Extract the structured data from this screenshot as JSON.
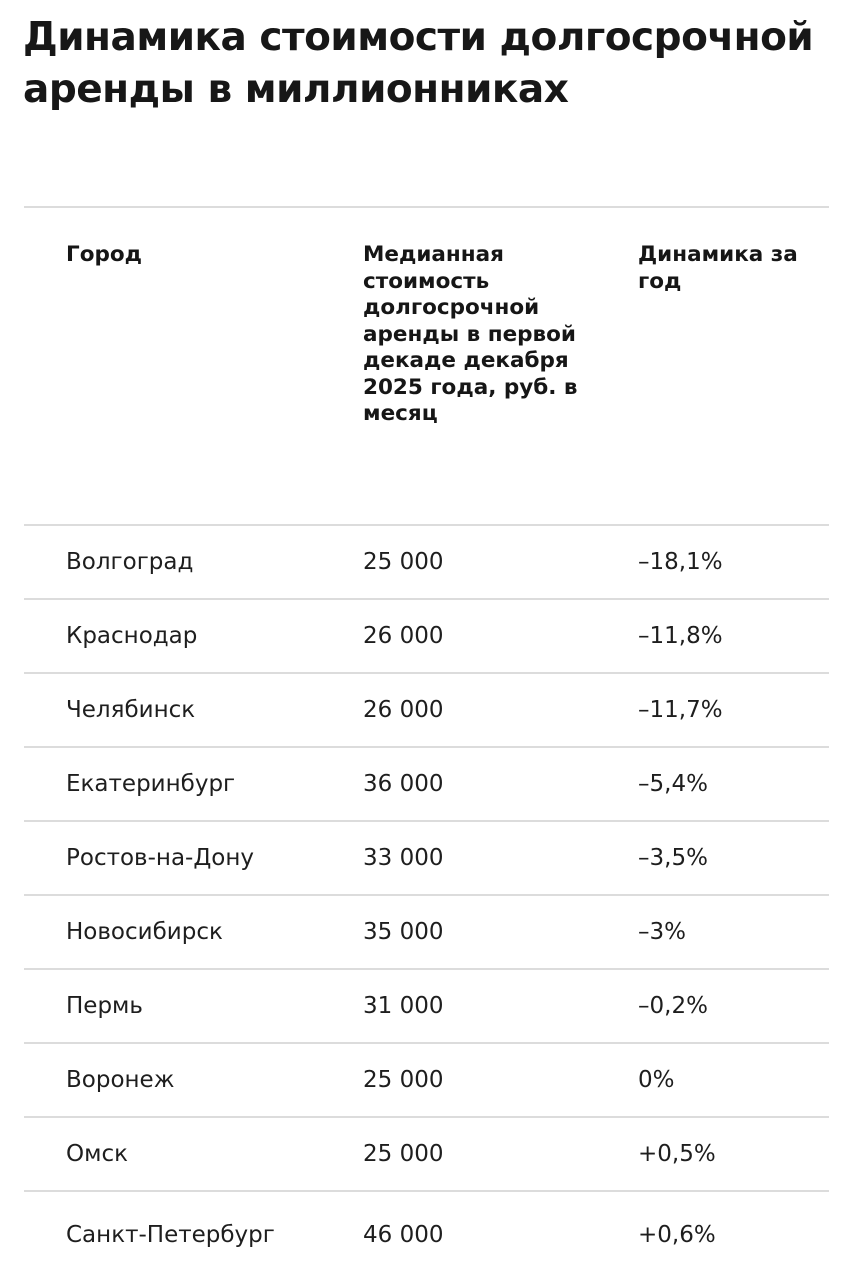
{
  "title": "Динамика стоимости долгосрочной аренды в миллионниках",
  "table": {
    "headers": [
      "Город",
      "Медианная стоимость долгосрочной аренды в первой декаде декабря 2025 года, руб. в месяц",
      "Динамика за год"
    ],
    "rows": [
      {
        "city": "Волгоград",
        "price": "25 000",
        "change": "–18,1%"
      },
      {
        "city": "Краснодар",
        "price": "26 000",
        "change": "–11,8%"
      },
      {
        "city": "Челябинск",
        "price": "26 000",
        "change": "–11,7%"
      },
      {
        "city": "Екатеринбург",
        "price": "36 000",
        "change": "–5,4%"
      },
      {
        "city": "Ростов-на-Дону",
        "price": "33 000",
        "change": "–3,5%"
      },
      {
        "city": "Новосибирск",
        "price": "35 000",
        "change": "–3%"
      },
      {
        "city": "Пермь",
        "price": "31 000",
        "change": "–0,2%"
      },
      {
        "city": "Воронеж",
        "price": "25 000",
        "change": "0%"
      },
      {
        "city": "Омск",
        "price": "25 000",
        "change": "+0,5%"
      },
      {
        "city": "Санкт-Петербург",
        "price": "46 000",
        "change": "+0,6%"
      }
    ]
  }
}
